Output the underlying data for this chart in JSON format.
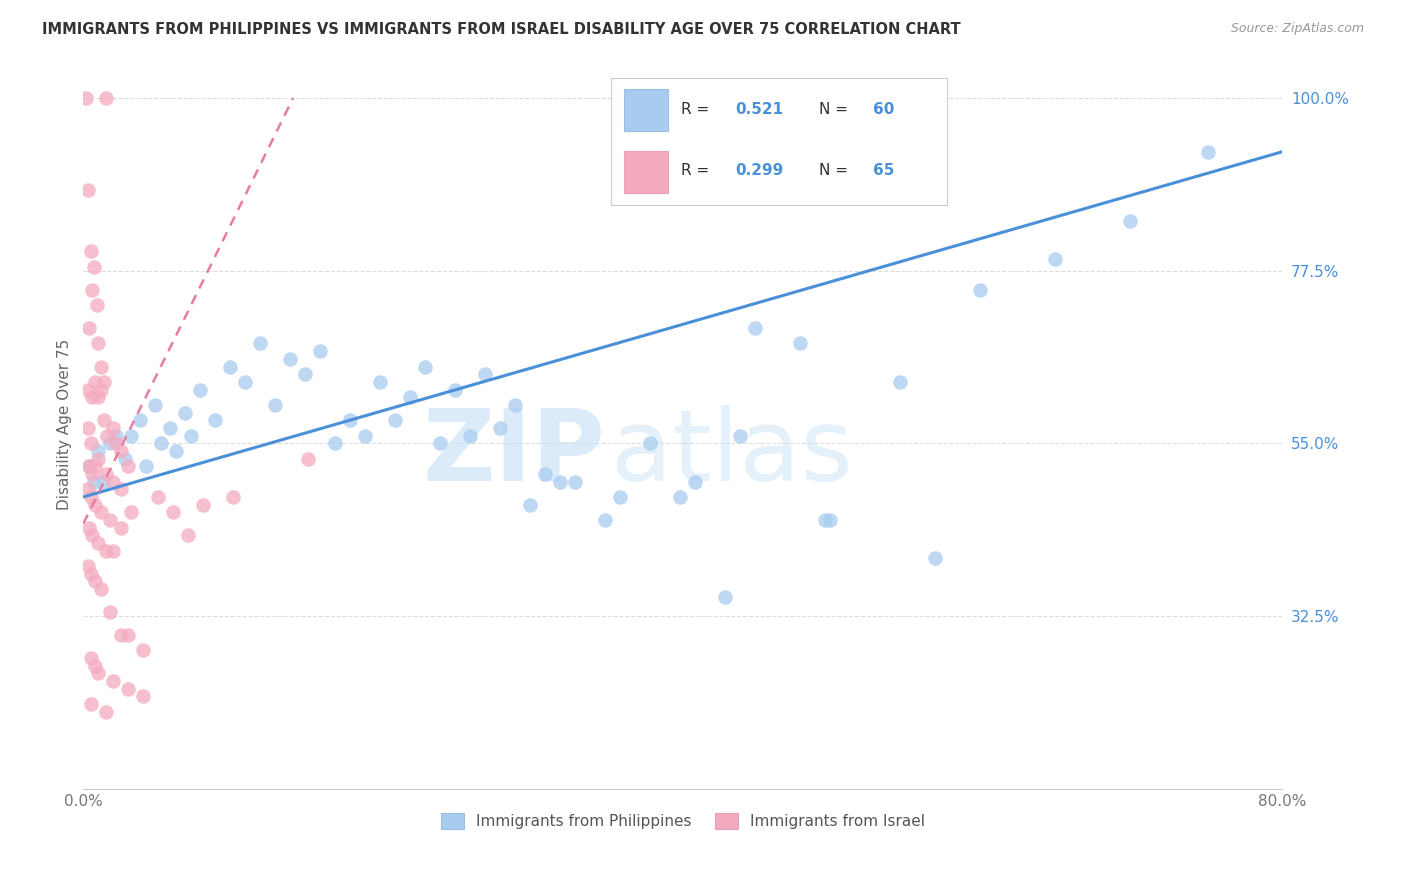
{
  "title": "IMMIGRANTS FROM PHILIPPINES VS IMMIGRANTS FROM ISRAEL DISABILITY AGE OVER 75 CORRELATION CHART",
  "source": "Source: ZipAtlas.com",
  "ylabel": "Disability Age Over 75",
  "right_yticks": [
    32.5,
    55.0,
    77.5,
    100.0
  ],
  "right_yticklabels": [
    "32.5%",
    "55.0%",
    "77.5%",
    "100.0%"
  ],
  "legend_label_blue": "Immigrants from Philippines",
  "legend_label_pink": "Immigrants from Israel",
  "R_blue": 0.521,
  "N_blue": 60,
  "R_pink": 0.299,
  "N_pink": 65,
  "color_blue": "#A8CCF0",
  "color_pink": "#F4AABE",
  "color_blue_dark": "#4A90D9",
  "color_pink_dark": "#E87CA0",
  "xlim": [
    0.0,
    80.0
  ],
  "ylim": [
    10.0,
    105.0
  ],
  "watermark_zip": "ZIP",
  "watermark_atlas": "atlas",
  "blue_line_x": [
    0.0,
    80.0
  ],
  "blue_line_y": [
    48.0,
    93.0
  ],
  "pink_line_x": [
    0.0,
    14.0
  ],
  "pink_line_y": [
    44.5,
    100.0
  ],
  "blue_scatter": [
    [
      0.4,
      52
    ],
    [
      0.7,
      50
    ],
    [
      1.0,
      54
    ],
    [
      1.3,
      50
    ],
    [
      1.8,
      55
    ],
    [
      2.2,
      56
    ],
    [
      2.8,
      53
    ],
    [
      3.2,
      56
    ],
    [
      3.8,
      58
    ],
    [
      4.2,
      52
    ],
    [
      4.8,
      60
    ],
    [
      5.2,
      55
    ],
    [
      5.8,
      57
    ],
    [
      6.2,
      54
    ],
    [
      6.8,
      59
    ],
    [
      7.2,
      56
    ],
    [
      7.8,
      62
    ],
    [
      8.8,
      58
    ],
    [
      9.8,
      65
    ],
    [
      10.8,
      63
    ],
    [
      11.8,
      68
    ],
    [
      12.8,
      60
    ],
    [
      13.8,
      66
    ],
    [
      14.8,
      64
    ],
    [
      15.8,
      67
    ],
    [
      16.8,
      55
    ],
    [
      17.8,
      58
    ],
    [
      18.8,
      56
    ],
    [
      19.8,
      63
    ],
    [
      20.8,
      58
    ],
    [
      21.8,
      61
    ],
    [
      22.8,
      65
    ],
    [
      23.8,
      55
    ],
    [
      24.8,
      62
    ],
    [
      25.8,
      56
    ],
    [
      26.8,
      64
    ],
    [
      27.8,
      57
    ],
    [
      28.8,
      60
    ],
    [
      29.8,
      47
    ],
    [
      30.8,
      51
    ],
    [
      31.8,
      50
    ],
    [
      32.8,
      50
    ],
    [
      34.8,
      45
    ],
    [
      35.8,
      48
    ],
    [
      37.8,
      55
    ],
    [
      39.8,
      48
    ],
    [
      40.8,
      50
    ],
    [
      42.8,
      35
    ],
    [
      43.8,
      56
    ],
    [
      44.8,
      70
    ],
    [
      47.8,
      68
    ],
    [
      49.8,
      45
    ],
    [
      49.5,
      45
    ],
    [
      51.8,
      98
    ],
    [
      54.5,
      63
    ],
    [
      56.8,
      40
    ],
    [
      59.8,
      75
    ],
    [
      64.8,
      79
    ],
    [
      69.8,
      84
    ],
    [
      75.0,
      93
    ]
  ],
  "pink_scatter": [
    [
      0.2,
      100
    ],
    [
      1.5,
      100
    ],
    [
      0.3,
      88
    ],
    [
      0.5,
      80
    ],
    [
      0.7,
      78
    ],
    [
      0.6,
      75
    ],
    [
      0.9,
      73
    ],
    [
      0.4,
      70
    ],
    [
      1.0,
      68
    ],
    [
      1.2,
      65
    ],
    [
      1.4,
      63
    ],
    [
      0.3,
      62
    ],
    [
      0.6,
      61
    ],
    [
      0.8,
      63
    ],
    [
      1.0,
      61
    ],
    [
      1.2,
      62
    ],
    [
      1.4,
      58
    ],
    [
      0.3,
      57
    ],
    [
      1.6,
      56
    ],
    [
      2.0,
      57
    ],
    [
      0.5,
      55
    ],
    [
      2.2,
      55
    ],
    [
      2.5,
      54
    ],
    [
      0.4,
      52
    ],
    [
      0.6,
      51
    ],
    [
      0.8,
      52
    ],
    [
      1.0,
      53
    ],
    [
      1.5,
      51
    ],
    [
      2.0,
      50
    ],
    [
      2.5,
      49
    ],
    [
      3.0,
      52
    ],
    [
      0.3,
      49
    ],
    [
      0.5,
      48
    ],
    [
      0.8,
      47
    ],
    [
      1.2,
      46
    ],
    [
      1.8,
      45
    ],
    [
      2.5,
      44
    ],
    [
      3.2,
      46
    ],
    [
      0.4,
      44
    ],
    [
      0.6,
      43
    ],
    [
      1.0,
      42
    ],
    [
      1.5,
      41
    ],
    [
      2.0,
      41
    ],
    [
      0.3,
      39
    ],
    [
      0.5,
      38
    ],
    [
      0.8,
      37
    ],
    [
      1.2,
      36
    ],
    [
      1.8,
      33
    ],
    [
      2.5,
      30
    ],
    [
      3.0,
      30
    ],
    [
      4.0,
      28
    ],
    [
      0.5,
      27
    ],
    [
      0.8,
      26
    ],
    [
      1.0,
      25
    ],
    [
      2.0,
      24
    ],
    [
      3.0,
      23
    ],
    [
      4.0,
      22
    ],
    [
      0.5,
      21
    ],
    [
      1.5,
      20
    ],
    [
      5.0,
      48
    ],
    [
      6.0,
      46
    ],
    [
      7.0,
      43
    ],
    [
      8.0,
      47
    ],
    [
      10.0,
      48
    ],
    [
      15.0,
      53
    ]
  ]
}
